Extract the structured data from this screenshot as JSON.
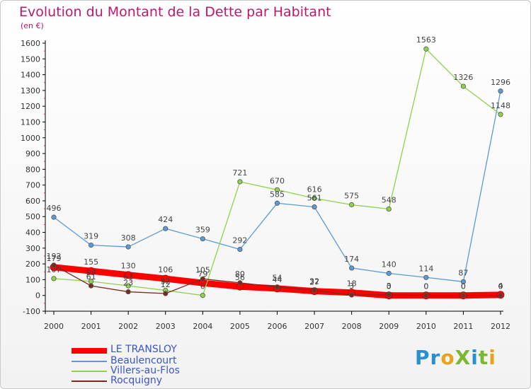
{
  "title": "Evolution du Montant de la Dette par Habitant",
  "unit": "(en €)",
  "brand": "ProXiti",
  "chart_data": {
    "type": "line",
    "title": "Evolution du Montant de la Dette par Habitant",
    "subtitle": "(en €)",
    "xlabel": "",
    "ylabel": "",
    "x": [
      2000,
      2001,
      2002,
      2003,
      2004,
      2005,
      2006,
      2007,
      2008,
      2009,
      2010,
      2011,
      2012
    ],
    "ylim": [
      -100,
      1600
    ],
    "yticks": [
      -100,
      0,
      100,
      200,
      300,
      400,
      500,
      600,
      700,
      800,
      900,
      1000,
      1100,
      1200,
      1300,
      1400,
      1500,
      1600
    ],
    "grid": false,
    "legend_position": "bottom-left",
    "series": [
      {
        "name": "LE TRANSLOY",
        "color": "#ff0000",
        "values": [
          179,
          155,
          130,
          106,
          79,
          56,
          44,
          27,
          18,
          0,
          0,
          0,
          4
        ]
      },
      {
        "name": "Beaulencourt",
        "color": "#5b9bd5",
        "values": [
          496,
          319,
          308,
          424,
          359,
          292,
          585,
          561,
          174,
          140,
          114,
          87,
          1296
        ]
      },
      {
        "name": "Villers-au-Flos",
        "color": "#8ed24d",
        "values": [
          107,
          89,
          61,
          32,
          0,
          721,
          670,
          616,
          575,
          548,
          1563,
          1326,
          1148
        ]
      },
      {
        "name": "Rocquigny",
        "color": "#7a2a1f",
        "values": [
          192,
          61,
          23,
          12,
          105,
          80,
          54,
          32,
          3,
          3,
          0,
          0,
          0
        ]
      }
    ]
  }
}
